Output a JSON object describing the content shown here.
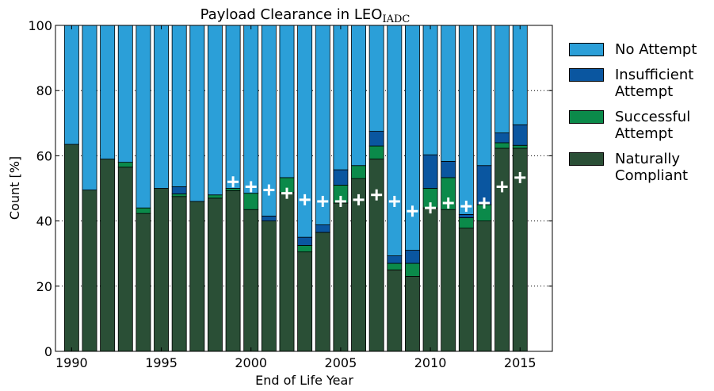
{
  "chart_data": {
    "type": "stacked_bar",
    "title": {
      "text": "Payload Clearance in LEO",
      "subscript": "IADC"
    },
    "x_label": "End of Life Year",
    "y_label": "Count [%]",
    "x": [
      1990,
      1991,
      1992,
      1993,
      1994,
      1995,
      1996,
      1997,
      1998,
      1999,
      2000,
      2001,
      2002,
      2003,
      2004,
      2005,
      2006,
      2007,
      2008,
      2009,
      2010,
      2011,
      2012,
      2013,
      2014,
      2015
    ],
    "series": [
      {
        "name": "Naturally Compliant",
        "color": "#2a4f36",
        "values": [
          63.5,
          49.5,
          59,
          56.5,
          42.3,
          50,
          47.5,
          46,
          47,
          49.3,
          43.5,
          40,
          48.7,
          30.5,
          36.5,
          45.5,
          53,
          59,
          25,
          23,
          44,
          43.5,
          37.8,
          40,
          62.3,
          62.3
        ]
      },
      {
        "name": "Successful Attempt",
        "color": "#0b8a4a",
        "values": [
          0,
          0,
          0,
          1.5,
          1.7,
          0,
          0.8,
          0,
          1,
          0.7,
          5,
          0,
          4.6,
          2,
          0,
          5.5,
          4,
          4,
          2,
          4,
          6,
          9.8,
          3.2,
          5,
          1.7,
          0.9
        ]
      },
      {
        "name": "Insufficient Attempt",
        "color": "#0a56a0",
        "values": [
          0,
          0,
          0,
          0,
          0,
          0,
          2.2,
          0,
          0,
          0,
          0,
          1.5,
          0,
          2.5,
          2.3,
          4.7,
          0,
          4.5,
          2.3,
          4,
          10.3,
          5,
          1,
          12,
          3,
          6.3
        ]
      },
      {
        "name": "No Attempt",
        "color": "#2b9fd8",
        "values": [
          36.5,
          50.5,
          41,
          42,
          56,
          50,
          49.5,
          54,
          52,
          50,
          51.5,
          58.5,
          46.7,
          65,
          61.2,
          44.3,
          43,
          32.5,
          70.7,
          69,
          39.7,
          41.7,
          58,
          43,
          33,
          30.5
        ]
      }
    ],
    "markers": {
      "color": "#ffffff",
      "x": [
        1999,
        2000,
        2001,
        2002,
        2003,
        2004,
        2005,
        2006,
        2007,
        2008,
        2009,
        2010,
        2011,
        2012,
        2013,
        2014,
        2015
      ],
      "values": [
        52,
        50.5,
        49.5,
        48.5,
        46.5,
        46,
        46,
        46.5,
        48,
        46,
        43,
        44,
        45.5,
        44.5,
        45.5,
        50.5,
        53.3
      ]
    },
    "xlim": [
      1989.1,
      2016.8
    ],
    "xticks": [
      1990,
      1995,
      2000,
      2005,
      2010,
      2015
    ],
    "ylim": [
      0,
      100
    ],
    "yticks": [
      0,
      20,
      40,
      60,
      80,
      100
    ],
    "grid": true,
    "legend": "outside right"
  }
}
